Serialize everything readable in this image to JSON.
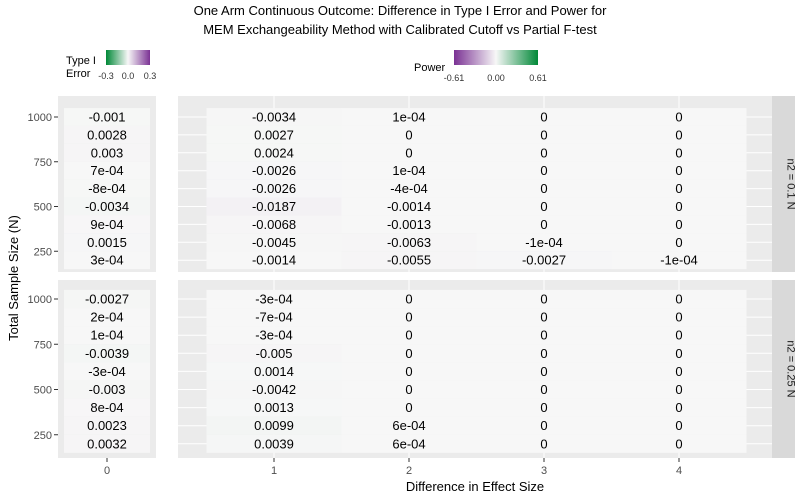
{
  "chart_data": {
    "type": "heatmap",
    "title_lines": [
      "One Arm Continuous Outcome: Difference in Type I Error and Power for",
      "MEM Exchangeability Method with Calibrated Cutoff vs Partial F-test"
    ],
    "xlabel": "Difference in Effect Size",
    "ylabel": "Total Sample Size (N)",
    "x_ticks": [
      "0",
      "1",
      "2",
      "3",
      "4"
    ],
    "y_ticks": [
      "1000",
      "750",
      "500",
      "250"
    ],
    "y_tick_values": [
      1000,
      750,
      500,
      250
    ],
    "rows_N": [
      1000,
      900,
      800,
      700,
      600,
      500,
      400,
      300,
      200
    ],
    "facets": [
      "n2 = 0.1 N",
      "n2 = 0.25 N"
    ],
    "legends": {
      "type1": {
        "title_lines": [
          "Type I",
          "Error"
        ],
        "ticks": [
          "-0.3",
          "0.0",
          "0.3"
        ],
        "low": -0.3,
        "high": 0.3
      },
      "power": {
        "title": "Power",
        "ticks": [
          "-0.61",
          "0.00",
          "0.61"
        ],
        "low": -0.61,
        "high": 0.61
      }
    },
    "colors": {
      "negative": "#7b3294",
      "positive": "#008837",
      "mid": "#f7f7f7"
    },
    "panels": [
      {
        "facet": "n2 = 0.1 N",
        "type1_labels": [
          "-0.001",
          "0.0028",
          "0.003",
          "7e-04",
          "-8e-04",
          "-0.0034",
          "9e-04",
          "0.0015",
          "3e-04"
        ],
        "power_labels": [
          [
            "-0.0034",
            "1e-04",
            "0",
            "0"
          ],
          [
            "0.0027",
            "0",
            "0",
            "0"
          ],
          [
            "0.0024",
            "0",
            "0",
            "0"
          ],
          [
            "-0.0026",
            "1e-04",
            "0",
            "0"
          ],
          [
            "-0.0026",
            "-4e-04",
            "0",
            "0"
          ],
          [
            "-0.0187",
            "-0.0014",
            "0",
            "0"
          ],
          [
            "-0.0068",
            "-0.0013",
            "0",
            "0"
          ],
          [
            "-0.0045",
            "-0.0063",
            "-1e-04",
            "0"
          ],
          [
            "-0.0014",
            "-0.0055",
            "-0.0027",
            "-1e-04"
          ]
        ]
      },
      {
        "facet": "n2 = 0.25 N",
        "type1_labels": [
          "-0.0027",
          "2e-04",
          "1e-04",
          "-0.0039",
          "-3e-04",
          "-0.003",
          "8e-04",
          "0.0023",
          "0.0032"
        ],
        "power_labels": [
          [
            "-3e-04",
            "0",
            "0",
            "0"
          ],
          [
            "-7e-04",
            "0",
            "0",
            "0"
          ],
          [
            "-3e-04",
            "0",
            "0",
            "0"
          ],
          [
            "-0.005",
            "0",
            "0",
            "0"
          ],
          [
            "0.0014",
            "0",
            "0",
            "0"
          ],
          [
            "-0.0042",
            "0",
            "0",
            "0"
          ],
          [
            "0.0013",
            "0",
            "0",
            "0"
          ],
          [
            "0.0099",
            "6e-04",
            "0",
            "0"
          ],
          [
            "0.0039",
            "6e-04",
            "0",
            "0"
          ]
        ]
      }
    ]
  }
}
